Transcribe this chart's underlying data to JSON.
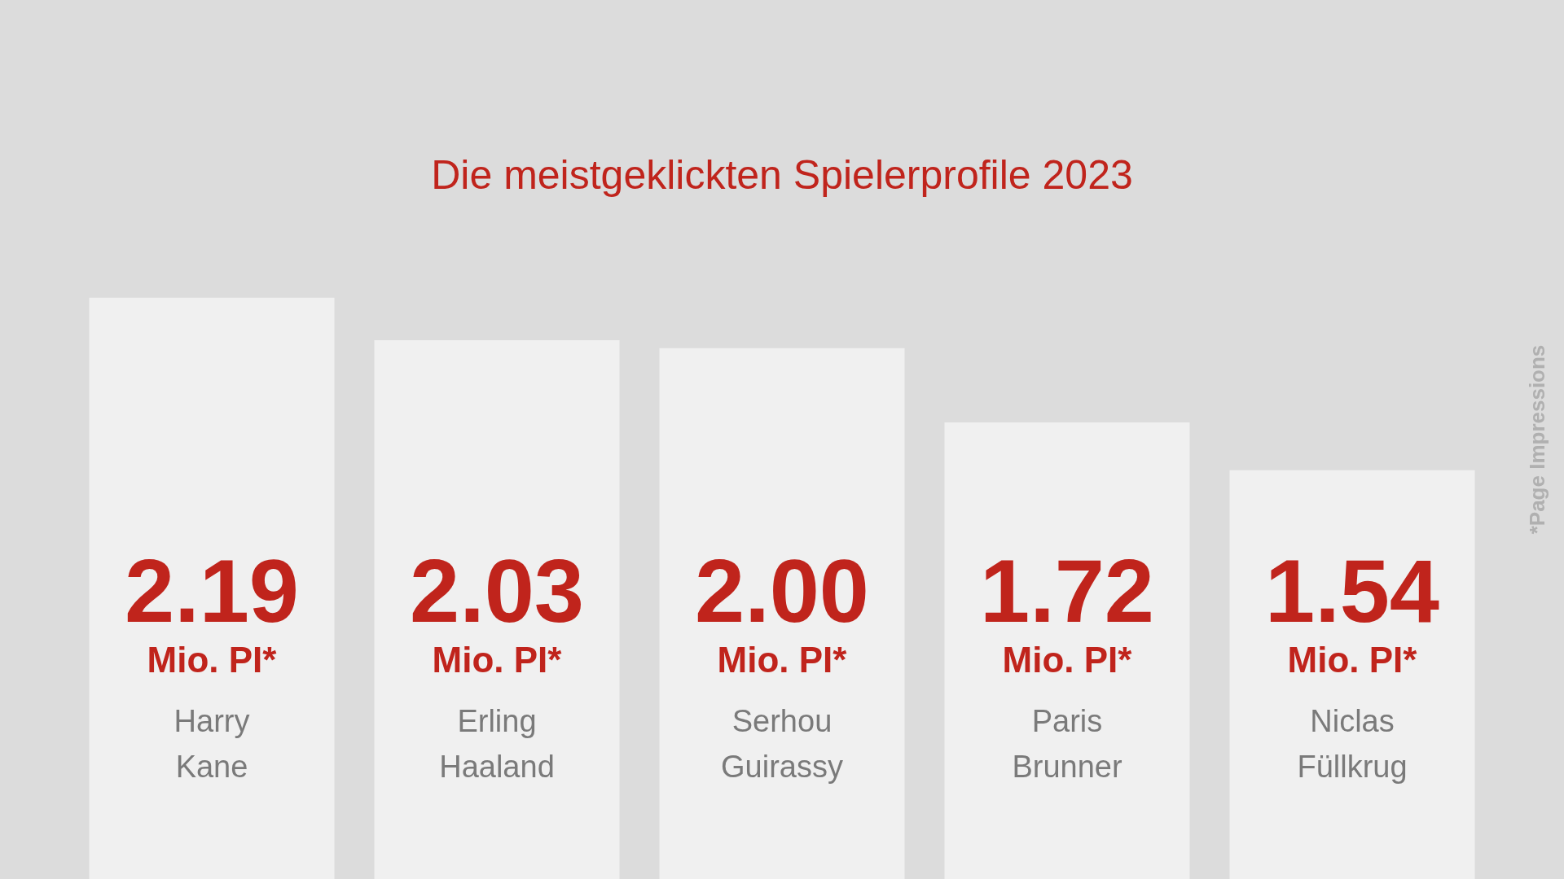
{
  "chart_data": {
    "type": "bar",
    "title": "Die meistgeklickten Spielerprofile 2023",
    "categories": [
      "Harry\nKane",
      "Erling\nHaaland",
      "Serhou\nGuirassy",
      "Paris\nBrunner",
      "Niclas\nFüllkrug"
    ],
    "values": [
      2.19,
      2.03,
      2.0,
      1.72,
      1.54
    ],
    "value_labels": [
      "2.19\nMio. PI*",
      "2.03\nMio. PI*",
      "2.00\nMio. PI*",
      "1.72\nMio. PI*",
      "1.54\nMio. PI*"
    ],
    "color": "#f0f0f0",
    "annotations": [
      "*Page Impressions"
    ]
  }
}
